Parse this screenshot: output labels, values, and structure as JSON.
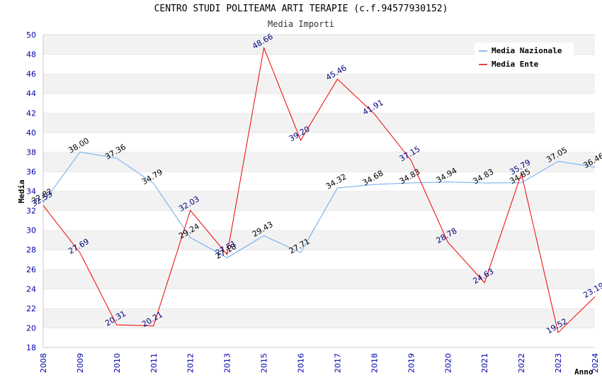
{
  "chart_data": {
    "type": "line",
    "title": "CENTRO STUDI POLITEAMA ARTI TERAPIE (c.f.94577930152)",
    "subtitle": "Media Importi",
    "xlabel": "Anno",
    "ylabel": "Media",
    "ylim": [
      18,
      50
    ],
    "yticks": [
      18,
      20,
      22,
      24,
      26,
      28,
      30,
      32,
      34,
      36,
      38,
      40,
      42,
      44,
      46,
      48,
      50
    ],
    "categories": [
      "2008",
      "2009",
      "2010",
      "2011",
      "2012",
      "2013",
      "2015",
      "2016",
      "2017",
      "2018",
      "2019",
      "2020",
      "2021",
      "2022",
      "2023",
      "2024"
    ],
    "series": [
      {
        "name": "Media Nazionale",
        "color": "#6aaaee",
        "values": [
          32.82,
          38.0,
          37.36,
          34.79,
          29.24,
          27.18,
          29.43,
          27.71,
          34.32,
          34.68,
          34.83,
          34.94,
          34.83,
          34.85,
          37.05,
          36.46
        ],
        "labels": [
          "32.82",
          "38.00",
          "37.36",
          "34.79",
          "29.24",
          "27.18",
          "29.43",
          "27.71",
          "34.32",
          "34.68",
          "34.83",
          "34.94",
          "34.83",
          "34.85",
          "37.05",
          "36.46"
        ]
      },
      {
        "name": "Media Ente",
        "color": "#ee0000",
        "values": [
          32.53,
          27.69,
          20.31,
          20.21,
          32.03,
          27.51,
          48.66,
          39.2,
          45.46,
          41.91,
          37.15,
          28.78,
          24.63,
          35.79,
          19.52,
          23.19
        ],
        "labels": [
          "32.53",
          "27.69",
          "20.31",
          "20.21",
          "32.03",
          "27.51",
          "48.66",
          "39.20",
          "45.46",
          "41.91",
          "37.15",
          "28.78",
          "24.63",
          "35.79",
          "19.52",
          "23.19"
        ]
      }
    ],
    "legend_position": "top-right",
    "grid": true
  }
}
